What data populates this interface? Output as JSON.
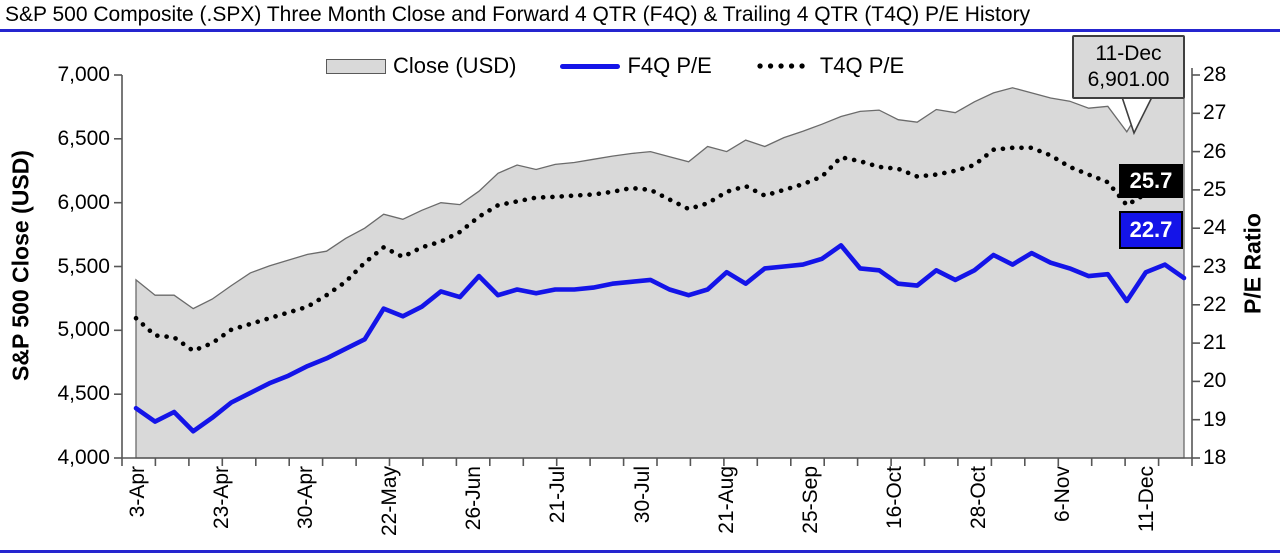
{
  "page": {
    "title": "S&P 500 Composite (.SPX) Three Month Close and Forward 4 QTR (F4Q) & Trailing 4 QTR (T4Q) P/E History",
    "accent_color": "#2525cf"
  },
  "chart_data": {
    "type": "area+line combo",
    "title": "S&P 500 Composite (.SPX) Three Month Close and Forward 4 QTR (F4Q) & Trailing 4 QTR (T4Q) P/E History",
    "legend_position": "top-center",
    "grid": false,
    "legend": [
      {
        "label": "Close (USD)",
        "style": "area",
        "color": "#d9d9d9"
      },
      {
        "label": "F4Q P/E",
        "style": "line",
        "color": "#1414e8"
      },
      {
        "label": "T4Q P/E",
        "style": "dotted",
        "color": "#000000"
      }
    ],
    "x_labels": [
      "3-Apr",
      "23-Apr",
      "30-Apr",
      "22-May",
      "26-Jun",
      "21-Jul",
      "30-Jul",
      "21-Aug",
      "25-Sep",
      "16-Oct",
      "28-Oct",
      "6-Nov",
      "11-Dec"
    ],
    "left_axis": {
      "title": "S&P 500 Close (USD)",
      "min": 4000,
      "max": 7000,
      "ticks": [
        "7,000",
        "6,500",
        "6,000",
        "5,500",
        "5,000",
        "4,500",
        "4,000"
      ]
    },
    "right_axis": {
      "title": "P/E Ratio",
      "min": 18,
      "max": 28,
      "ticks": [
        "28",
        "27",
        "26",
        "25",
        "24",
        "23",
        "22",
        "21",
        "20",
        "19",
        "18"
      ]
    },
    "series": [
      {
        "name": "Close (USD)",
        "axis": "left",
        "style": "area",
        "color": "#d9d9d9",
        "border_color": "#6b6b6b",
        "values": [
          5395,
          5275,
          5275,
          5170,
          5245,
          5350,
          5450,
          5505,
          5550,
          5595,
          5620,
          5720,
          5800,
          5910,
          5870,
          5940,
          6000,
          5985,
          6090,
          6230,
          6295,
          6260,
          6300,
          6315,
          6340,
          6365,
          6385,
          6400,
          6360,
          6320,
          6440,
          6400,
          6490,
          6440,
          6510,
          6560,
          6615,
          6675,
          6715,
          6725,
          6650,
          6630,
          6730,
          6705,
          6790,
          6860,
          6900,
          6860,
          6820,
          6795,
          6740,
          6755,
          6555,
          6800,
          6855,
          6901
        ]
      },
      {
        "name": "F4Q P/E",
        "axis": "right",
        "style": "line",
        "color": "#1414e8",
        "values": [
          19.3,
          18.95,
          19.2,
          18.7,
          19.05,
          19.45,
          19.7,
          19.95,
          20.15,
          20.4,
          20.6,
          20.85,
          21.1,
          21.9,
          21.7,
          21.95,
          22.35,
          22.2,
          22.75,
          22.25,
          22.4,
          22.3,
          22.4,
          22.4,
          22.45,
          22.55,
          22.6,
          22.65,
          22.4,
          22.25,
          22.4,
          22.85,
          22.55,
          22.95,
          23.0,
          23.05,
          23.2,
          23.55,
          22.95,
          22.9,
          22.55,
          22.5,
          22.9,
          22.65,
          22.9,
          23.3,
          23.05,
          23.35,
          23.1,
          22.95,
          22.75,
          22.8,
          22.1,
          22.85,
          23.05,
          22.7
        ]
      },
      {
        "name": "T4Q P/E",
        "axis": "right",
        "style": "dotted",
        "color": "#000000",
        "values": [
          21.65,
          21.2,
          21.15,
          20.8,
          21.0,
          21.35,
          21.5,
          21.65,
          21.8,
          21.95,
          22.25,
          22.6,
          23.1,
          23.5,
          23.25,
          23.5,
          23.65,
          23.9,
          24.3,
          24.6,
          24.7,
          24.8,
          24.82,
          24.85,
          24.88,
          24.95,
          25.05,
          25.0,
          24.75,
          24.5,
          24.65,
          24.95,
          25.1,
          24.85,
          25.0,
          25.15,
          25.35,
          25.85,
          25.75,
          25.6,
          25.55,
          25.35,
          25.4,
          25.5,
          25.65,
          26.05,
          26.1,
          26.1,
          25.9,
          25.6,
          25.4,
          25.2,
          24.6,
          24.9,
          25.3,
          25.7
        ]
      }
    ],
    "annotations": {
      "callout": {
        "line1": "11-Dec",
        "line2": "6,901.00"
      },
      "t4q_last_label": "25.7",
      "f4q_last_label": "22.7"
    }
  }
}
